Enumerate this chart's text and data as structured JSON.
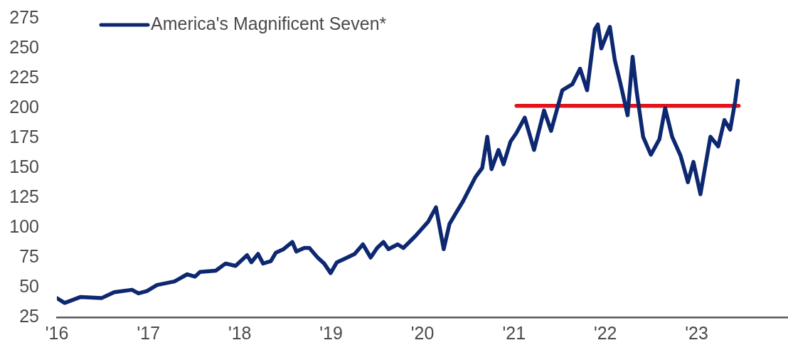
{
  "chart_data": {
    "type": "line",
    "legend": "top left",
    "marker": "none",
    "xlim": [
      "2016-01-01",
      "2024-01-01"
    ],
    "xticks": [
      {
        "value": "2016-01-01",
        "label": "'16"
      },
      {
        "value": "2017-01-01",
        "label": "'17"
      },
      {
        "value": "2018-01-01",
        "label": "'18"
      },
      {
        "value": "2019-01-01",
        "label": "'19"
      },
      {
        "value": "2020-01-01",
        "label": "'20"
      },
      {
        "value": "2021-01-01",
        "label": "'21"
      },
      {
        "value": "2022-01-01",
        "label": "'22"
      },
      {
        "value": "2023-01-01",
        "label": "'23"
      }
    ],
    "ylim": [
      25,
      275
    ],
    "yticks": [
      25,
      50,
      75,
      100,
      125,
      150,
      175,
      200,
      225,
      250,
      275
    ],
    "series": [
      {
        "name": "America's Magnificent Seven*",
        "color": "#0d2870",
        "x": [
          "2016-01-01",
          "2016-02-01",
          "2016-04-05",
          "2016-06-27",
          "2016-08-17",
          "2016-10-27",
          "2016-11-22",
          "2016-12-26",
          "2017-02-04",
          "2017-04-15",
          "2017-06-05",
          "2017-07-06",
          "2017-07-26",
          "2017-09-27",
          "2017-11-05",
          "2017-12-15",
          "2018-01-30",
          "2018-02-16",
          "2018-03-15",
          "2018-04-04",
          "2018-05-05",
          "2018-05-25",
          "2018-06-25",
          "2018-07-30",
          "2018-08-15",
          "2018-09-16",
          "2018-10-06",
          "2018-11-08",
          "2018-12-04",
          "2018-12-30",
          "2019-01-24",
          "2019-02-24",
          "2019-04-05",
          "2019-05-08",
          "2019-06-08",
          "2019-07-04",
          "2019-07-29",
          "2019-08-18",
          "2019-09-24",
          "2019-10-17",
          "2019-12-04",
          "2020-01-24",
          "2020-02-24",
          "2020-03-26",
          "2020-04-18",
          "2020-05-16",
          "2020-06-11",
          "2020-07-30",
          "2020-08-27",
          "2020-09-16",
          "2020-10-03",
          "2020-10-31",
          "2020-11-20",
          "2020-12-18",
          "2021-01-10",
          "2021-02-13",
          "2021-03-22",
          "2021-05-01",
          "2021-05-29",
          "2021-07-13",
          "2021-08-22",
          "2021-09-22",
          "2021-10-20",
          "2021-11-20",
          "2021-12-02",
          "2021-12-16",
          "2022-01-19",
          "2022-02-08",
          "2022-03-03",
          "2022-03-31",
          "2022-04-20",
          "2022-05-06",
          "2022-06-01",
          "2022-07-02",
          "2022-08-05",
          "2022-08-28",
          "2022-09-25",
          "2022-10-29",
          "2022-11-27",
          "2022-12-19",
          "2023-01-16",
          "2023-02-25",
          "2023-03-28",
          "2023-04-22",
          "2023-05-15",
          "2023-06-04",
          "2023-06-15"
        ],
        "values": [
          41,
          37,
          42,
          41,
          46,
          48,
          45,
          47,
          52,
          55,
          61,
          59,
          63,
          64,
          70,
          68,
          77,
          71,
          78,
          70,
          72,
          79,
          82,
          88,
          80,
          83,
          83,
          75,
          70,
          62,
          71,
          74,
          78,
          86,
          75,
          83,
          88,
          82,
          86,
          83,
          93,
          105,
          117,
          82,
          103,
          113,
          122,
          142,
          150,
          176,
          149,
          165,
          153,
          172,
          179,
          192,
          165,
          198,
          181,
          215,
          220,
          233,
          215,
          266,
          270,
          250,
          268,
          240,
          220,
          194,
          243,
          214,
          176,
          161,
          174,
          200,
          176,
          160,
          138,
          155,
          128,
          176,
          168,
          190,
          182,
          206,
          223
        ]
      },
      {
        "color": "#e3141b",
        "x": [
          "2021-01-11",
          "2023-06-18"
        ],
        "values": [
          202,
          202
        ]
      }
    ]
  }
}
